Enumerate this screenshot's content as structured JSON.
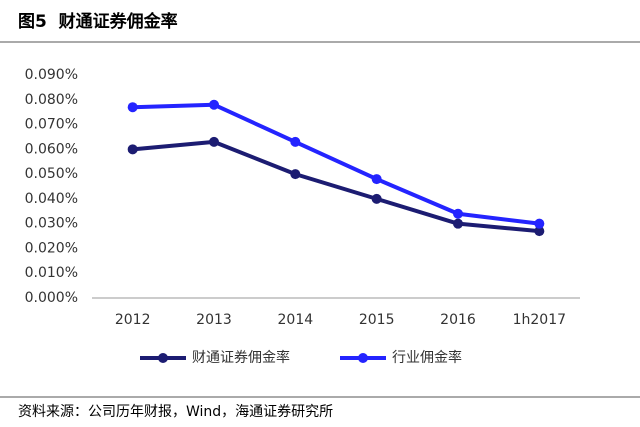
{
  "chart_data": {
    "type": "line",
    "title": "图5  财通证券佣金率",
    "source": "资料来源：公司历年财报，Wind，海通证券研究所",
    "categories": [
      "2012",
      "2013",
      "2014",
      "2015",
      "2016",
      "1h2017"
    ],
    "series": [
      {
        "name": "财通证券佣金率",
        "color": "#1c1c72",
        "values": [
          0.06,
          0.063,
          0.05,
          0.04,
          0.03,
          0.027
        ]
      },
      {
        "name": "行业佣金率",
        "color": "#2424ff",
        "values": [
          0.077,
          0.078,
          0.063,
          0.048,
          0.034,
          0.03
        ]
      }
    ],
    "ylim": [
      0,
      0.09
    ],
    "yticks": [
      {
        "value": 0,
        "label": "0.000%"
      },
      {
        "value": 0.01,
        "label": "0.010%"
      },
      {
        "value": 0.02,
        "label": "0.020%"
      },
      {
        "value": 0.03,
        "label": "0.030%"
      },
      {
        "value": 0.04,
        "label": "0.040%"
      },
      {
        "value": 0.05,
        "label": "0.050%"
      },
      {
        "value": 0.06,
        "label": "0.060%"
      },
      {
        "value": 0.07,
        "label": "0.070%"
      },
      {
        "value": 0.08,
        "label": "0.080%"
      },
      {
        "value": 0.09,
        "label": "0.090%"
      }
    ],
    "grid": false,
    "legend": "bottom"
  }
}
